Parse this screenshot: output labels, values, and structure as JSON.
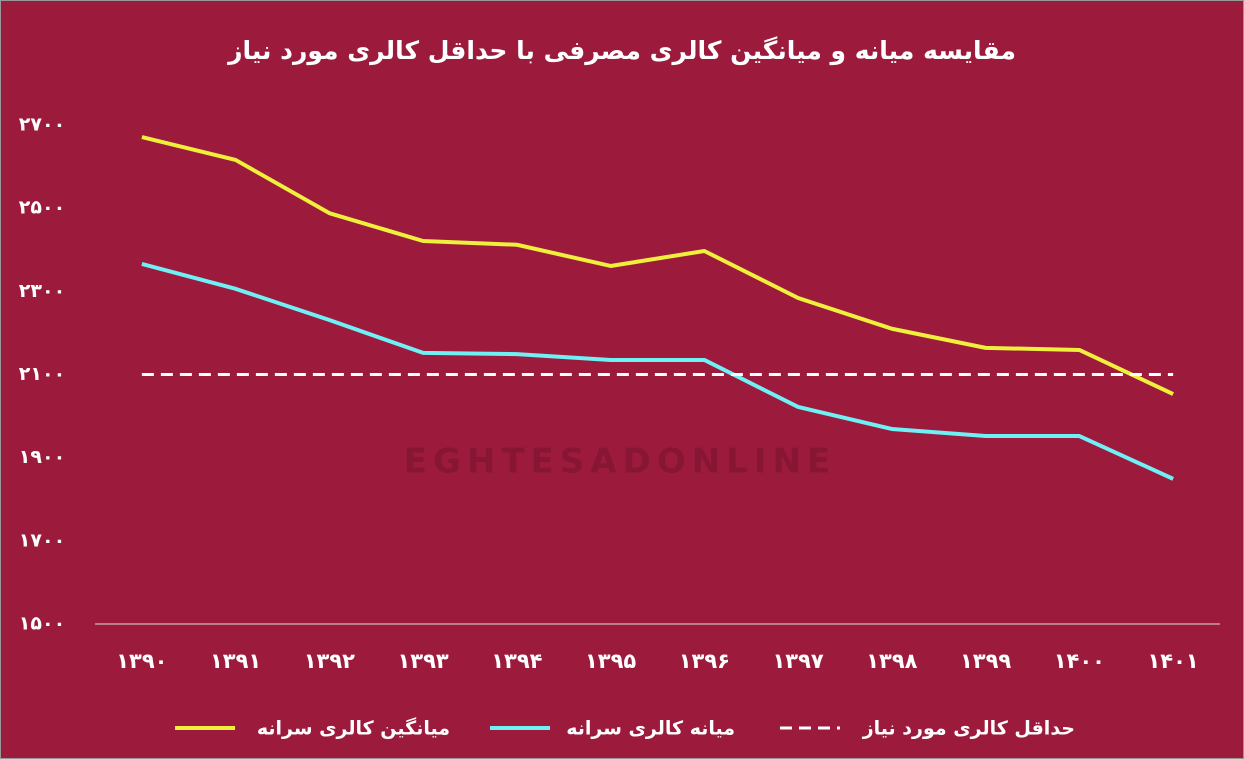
{
  "chart_data": {
    "type": "line",
    "title": "مقایسه میانه و میانگین کالری مصرفی با حداقل کالری مورد نیاز",
    "watermark": "EGHTESADONLINE",
    "categories": [
      "۱۳۹۰",
      "۱۳۹۱",
      "۱۳۹۲",
      "۱۳۹۳",
      "۱۳۹۴",
      "۱۳۹۵",
      "۱۳۹۶",
      "۱۳۹۷",
      "۱۳۹۸",
      "۱۳۹۹",
      "۱۴۰۰",
      "۱۴۰۱"
    ],
    "series": [
      {
        "name": "میانگین کالری سرانه",
        "color": "#eef03c",
        "values": [
          2671,
          2616,
          2488,
          2421,
          2412,
          2361,
          2397,
          2284,
          2210,
          2164,
          2159,
          2053
        ]
      },
      {
        "name": "میانه کالری سرانه",
        "color": "#6ef0f5",
        "values": [
          2366,
          2306,
          2231,
          2152,
          2149,
          2135,
          2135,
          2022,
          1969,
          1952,
          1952,
          1849
        ]
      },
      {
        "name": "حداقل کالری مورد نیاز",
        "color": "#ffffff",
        "dashed": true,
        "values": [
          2100,
          2100,
          2100,
          2100,
          2100,
          2100,
          2100,
          2100,
          2100,
          2100,
          2100,
          2100
        ]
      }
    ],
    "ylim": [
      1500,
      2700
    ],
    "yticks": [
      {
        "value": 1500,
        "label": "۱۵۰۰"
      },
      {
        "value": 1700,
        "label": "۱۷۰۰"
      },
      {
        "value": 1900,
        "label": "۱۹۰۰"
      },
      {
        "value": 2100,
        "label": "۲۱۰۰"
      },
      {
        "value": 2300,
        "label": "۲۳۰۰"
      },
      {
        "value": 2500,
        "label": "۲۵۰۰"
      },
      {
        "value": 2700,
        "label": "۲۷۰۰"
      }
    ],
    "grid": false,
    "background": "#9c1a3c"
  }
}
